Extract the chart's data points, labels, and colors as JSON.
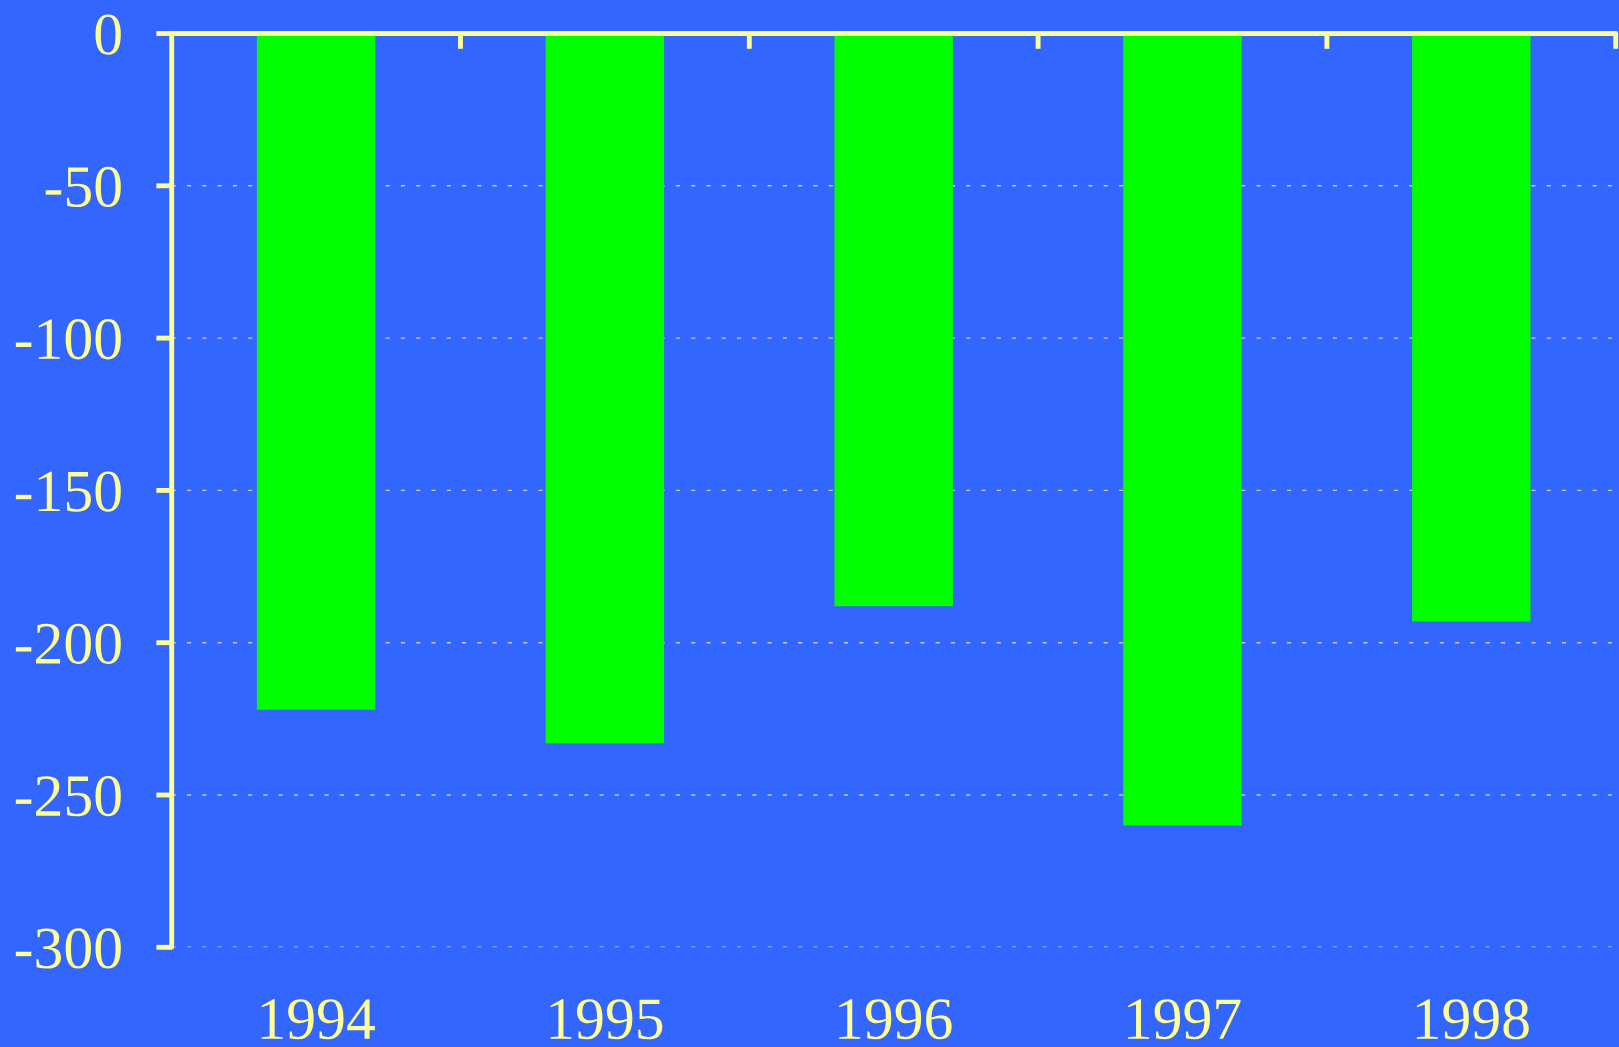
{
  "chart_data": {
    "type": "bar",
    "categories": [
      "1994",
      "1995",
      "1996",
      "1997",
      "1998"
    ],
    "values": [
      -222,
      -233,
      -188,
      -260,
      -193
    ],
    "color": "#00ff00",
    "ylim": [
      -300,
      0
    ],
    "yticks": [
      -300,
      -250,
      -200,
      -150,
      -100,
      -50,
      0
    ],
    "grid": "y"
  }
}
